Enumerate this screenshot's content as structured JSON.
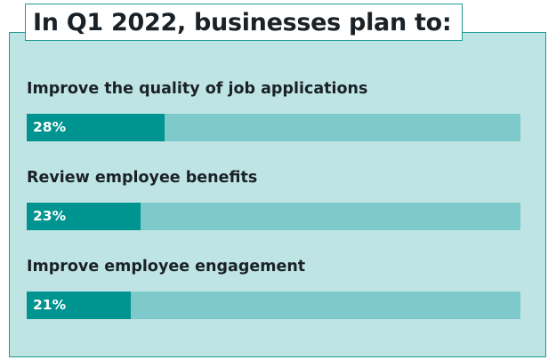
{
  "title": "In Q1 2022, businesses plan to:",
  "chart_data": {
    "type": "bar",
    "orientation": "horizontal",
    "title": "In Q1 2022, businesses plan to:",
    "categories": [
      "Improve the quality of job applications",
      "Review employee benefits",
      "Improve employee engagement"
    ],
    "values": [
      28,
      23,
      21
    ],
    "value_labels": [
      "28%",
      "23%",
      "21%"
    ],
    "xlim": [
      0,
      100
    ],
    "unit": "%",
    "grid": false,
    "legend": "none",
    "colors": {
      "bar": "#009490",
      "track": "#7ec9c9",
      "panel": "#bfe4e4",
      "border": "#1f9a96",
      "text": "#1a2228"
    }
  }
}
